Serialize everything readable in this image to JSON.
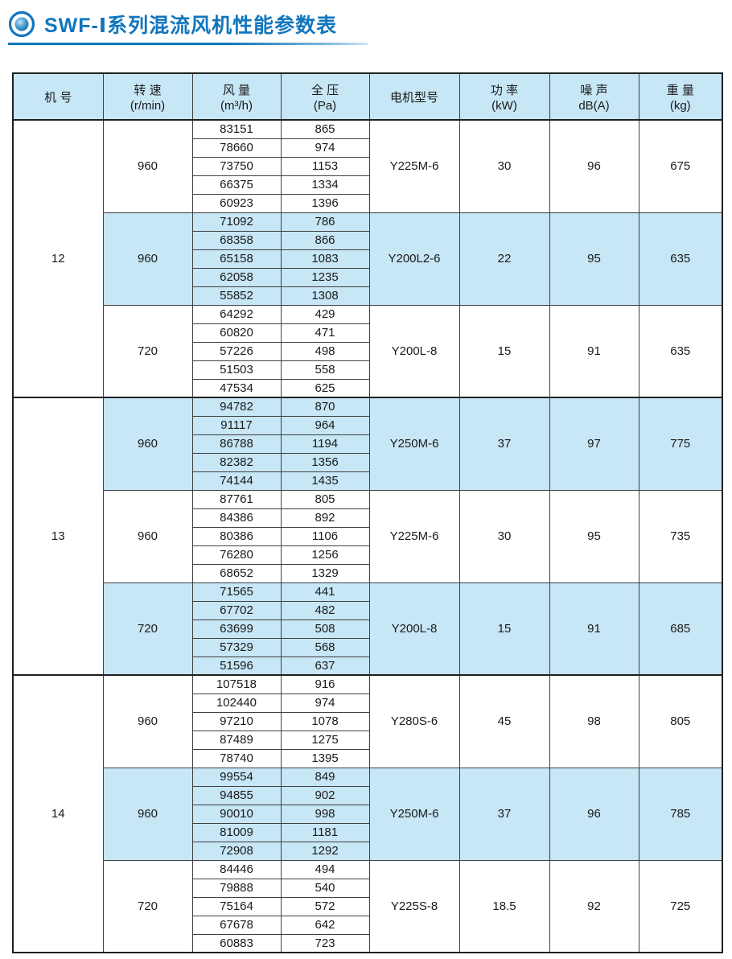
{
  "page": {
    "title": "SWF-Ⅰ系列混流风机性能参数表"
  },
  "colors": {
    "accent_blue": "#1176bd",
    "header_bg": "#c7e6f6",
    "highlight_row_bg": "#c7e6f6",
    "grid_line": "#3f3f3f"
  },
  "icons": {
    "title_icon": "bullseye-icon"
  },
  "table": {
    "header": [
      {
        "label": "机  号",
        "sub": ""
      },
      {
        "label": "转  速",
        "sub": "(r/min)"
      },
      {
        "label": "风  量",
        "sub": "(m³/h)"
      },
      {
        "label": "全  压",
        "sub": "(Pa)"
      },
      {
        "label": "电机型号",
        "sub": ""
      },
      {
        "label": "功  率",
        "sub": "(kW)"
      },
      {
        "label": "噪  声",
        "sub": "dB(A)"
      },
      {
        "label": "重  量",
        "sub": "(kg)"
      }
    ],
    "machines": [
      {
        "machine": "12",
        "groups": [
          {
            "speed": "960",
            "highlight": false,
            "motor": "Y225M-6",
            "power": "30",
            "noise": "96",
            "weight": "675",
            "rows": [
              [
                83151,
                865
              ],
              [
                78660,
                974
              ],
              [
                73750,
                1153
              ],
              [
                66375,
                1334
              ],
              [
                60923,
                1396
              ]
            ]
          },
          {
            "speed": "960",
            "highlight": true,
            "motor": "Y200L2-6",
            "power": "22",
            "noise": "95",
            "weight": "635",
            "rows": [
              [
                71092,
                786
              ],
              [
                68358,
                866
              ],
              [
                65158,
                1083
              ],
              [
                62058,
                1235
              ],
              [
                55852,
                1308
              ]
            ]
          },
          {
            "speed": "720",
            "highlight": false,
            "motor": "Y200L-8",
            "power": "15",
            "noise": "91",
            "weight": "635",
            "rows": [
              [
                64292,
                429
              ],
              [
                60820,
                471
              ],
              [
                57226,
                498
              ],
              [
                51503,
                558
              ],
              [
                47534,
                625
              ]
            ]
          }
        ]
      },
      {
        "machine": "13",
        "groups": [
          {
            "speed": "960",
            "highlight": true,
            "motor": "Y250M-6",
            "power": "37",
            "noise": "97",
            "weight": "775",
            "rows": [
              [
                94782,
                870
              ],
              [
                91117,
                964
              ],
              [
                86788,
                1194
              ],
              [
                82382,
                1356
              ],
              [
                74144,
                1435
              ]
            ]
          },
          {
            "speed": "960",
            "highlight": false,
            "motor": "Y225M-6",
            "power": "30",
            "noise": "95",
            "weight": "735",
            "rows": [
              [
                87761,
                805
              ],
              [
                84386,
                892
              ],
              [
                80386,
                1106
              ],
              [
                76280,
                1256
              ],
              [
                68652,
                1329
              ]
            ]
          },
          {
            "speed": "720",
            "highlight": true,
            "motor": "Y200L-8",
            "power": "15",
            "noise": "91",
            "weight": "685",
            "rows": [
              [
                71565,
                441
              ],
              [
                67702,
                482
              ],
              [
                63699,
                508
              ],
              [
                57329,
                568
              ],
              [
                51596,
                637
              ]
            ]
          }
        ]
      },
      {
        "machine": "14",
        "groups": [
          {
            "speed": "960",
            "highlight": false,
            "motor": "Y280S-6",
            "power": "45",
            "noise": "98",
            "weight": "805",
            "rows": [
              [
                107518,
                916
              ],
              [
                102440,
                974
              ],
              [
                97210,
                1078
              ],
              [
                87489,
                1275
              ],
              [
                78740,
                1395
              ]
            ]
          },
          {
            "speed": "960",
            "highlight": true,
            "motor": "Y250M-6",
            "power": "37",
            "noise": "96",
            "weight": "785",
            "rows": [
              [
                99554,
                849
              ],
              [
                94855,
                902
              ],
              [
                90010,
                998
              ],
              [
                81009,
                1181
              ],
              [
                72908,
                1292
              ]
            ]
          },
          {
            "speed": "720",
            "highlight": false,
            "motor": "Y225S-8",
            "power": "18.5",
            "noise": "92",
            "weight": "725",
            "rows": [
              [
                84446,
                494
              ],
              [
                79888,
                540
              ],
              [
                75164,
                572
              ],
              [
                67678,
                642
              ],
              [
                60883,
                723
              ]
            ]
          }
        ]
      }
    ]
  }
}
